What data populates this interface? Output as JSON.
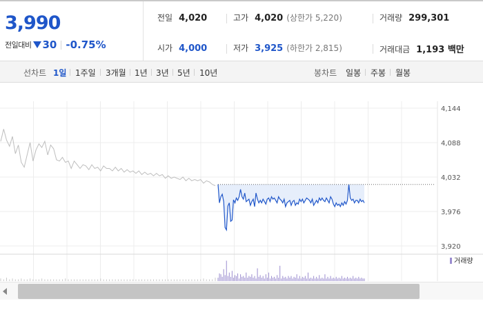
{
  "quote": {
    "price": "3,990",
    "change_label": "전일대비",
    "change_amount": "30",
    "change_percent": "-0.75%",
    "prev_close_label": "전일",
    "prev_close": "4,020",
    "high_label": "고가",
    "high": "4,020",
    "upper_limit_label": "(상한가 5,220)",
    "volume_label": "거래량",
    "volume": "299,301",
    "open_label": "시가",
    "open": "4,000",
    "low_label": "저가",
    "low": "3,925",
    "lower_limit_label": "(하한가 2,815)",
    "amount_label": "거래대금",
    "amount": "1,193 백만",
    "down_color": "#1f56c9"
  },
  "tabs": {
    "line_label": "선차트",
    "line_items": [
      "1일",
      "1주일",
      "3개월",
      "1년",
      "3년",
      "5년",
      "10년"
    ],
    "active_line": "1일",
    "candle_label": "봉차트",
    "candle_items": [
      "일봉",
      "주봉",
      "월봉"
    ]
  },
  "icons": {
    "change_direction": "down-triangle-icon",
    "scroll": "arrow-left-icon"
  },
  "chart_data": {
    "type": "line",
    "y_ticks": [
      "4,144",
      "4,088",
      "4,032",
      "3,976",
      "3,920"
    ],
    "ylim": [
      3920,
      4144
    ],
    "reference_line": 4020,
    "previous_day_series": [
      4090,
      4110,
      4092,
      4082,
      4098,
      4070,
      4084,
      4056,
      4048,
      4068,
      4088,
      4058,
      4076,
      4086,
      4080,
      4090,
      4068,
      4084,
      4078,
      4060,
      4058,
      4064,
      4056,
      4058,
      4046,
      4058,
      4052,
      4046,
      4052,
      4050,
      4044,
      4052,
      4046,
      4048,
      4042,
      4050,
      4046,
      4046,
      4042,
      4048,
      4042,
      4046,
      4040,
      4044,
      4040,
      4042,
      4038,
      4042,
      4036,
      4040,
      4036,
      4038,
      4034,
      4038,
      4034,
      4036,
      4030,
      4034,
      4030,
      4032,
      4030,
      4028,
      4032,
      4026,
      4030,
      4026,
      4028,
      4026,
      4028,
      4022,
      4026,
      4024,
      4020,
      4018
    ],
    "today_series": [
      4020,
      3990,
      4000,
      4004,
      3992,
      3950,
      3946,
      3985,
      3990,
      3960,
      3962,
      3995,
      3990,
      3998,
      3994,
      4000,
      4012,
      4000,
      3996,
      4006,
      3992,
      3994,
      3996,
      3986,
      3992,
      3996,
      3984,
      4006,
      3996,
      3990,
      3994,
      3990,
      3996,
      3992,
      3988,
      3996,
      3998,
      3992,
      4000,
      3996,
      3998,
      3994,
      3990,
      4000,
      3996,
      3994,
      3990,
      3996,
      3984,
      3990,
      3992,
      3994,
      3986,
      3992,
      3994,
      3986,
      3990,
      3988,
      3996,
      3992,
      3996,
      3990,
      3994,
      3998,
      3996,
      3994,
      3990,
      3996,
      3986,
      3990,
      3994,
      3990,
      3998,
      3994,
      3998,
      3994,
      3992,
      3998,
      3994,
      3990,
      4000,
      3996,
      3988,
      3984,
      3990,
      3986,
      3988,
      3984,
      3990,
      3986,
      3992,
      3988,
      3994,
      4020,
      3998,
      3994,
      3996,
      3990,
      3994,
      3994,
      3990,
      3996,
      3992,
      3994,
      3990
    ],
    "previous_day_volume": [
      3,
      2,
      4,
      2,
      3,
      2,
      2,
      3,
      2,
      2,
      3,
      2,
      2,
      2,
      3,
      2,
      2,
      2,
      2,
      2,
      2,
      2,
      3,
      2,
      2,
      2,
      2,
      2,
      2,
      2,
      2,
      2,
      2,
      2,
      3,
      2,
      2,
      2,
      2,
      2,
      2,
      2,
      2,
      2,
      2,
      2,
      2,
      2,
      2,
      2,
      2,
      2,
      2,
      2,
      2,
      2,
      2,
      2,
      2,
      2,
      2,
      2,
      2,
      2,
      2,
      2,
      2,
      2,
      2,
      3,
      2,
      2,
      2,
      4
    ],
    "today_volume": [
      4,
      9,
      8,
      5,
      14,
      7,
      24,
      6,
      10,
      5,
      12,
      4,
      7,
      6,
      9,
      3,
      8,
      5,
      6,
      4,
      10,
      4,
      6,
      5,
      8,
      4,
      6,
      3,
      15,
      5,
      7,
      4,
      6,
      3,
      8,
      4,
      10,
      3,
      6,
      4,
      5,
      3,
      7,
      4,
      18,
      3,
      6,
      4,
      5,
      3,
      6,
      4,
      6,
      3,
      5,
      4,
      8,
      3,
      6,
      3,
      5,
      4,
      6,
      3,
      10,
      3,
      4,
      3,
      6,
      3,
      5,
      3,
      7,
      3,
      4,
      3,
      8,
      3,
      5,
      3,
      6,
      3,
      4,
      3,
      5,
      3,
      4,
      3,
      6,
      3,
      4,
      3,
      5,
      3,
      4,
      3,
      6,
      3,
      4,
      3,
      5,
      3,
      4,
      3,
      3
    ],
    "legend": "거래량",
    "up_color": "#e24b3b",
    "down_color": "#1f56c9",
    "previous_day_color": "#bdbdbd",
    "volume_color": "#9a8ccf"
  }
}
